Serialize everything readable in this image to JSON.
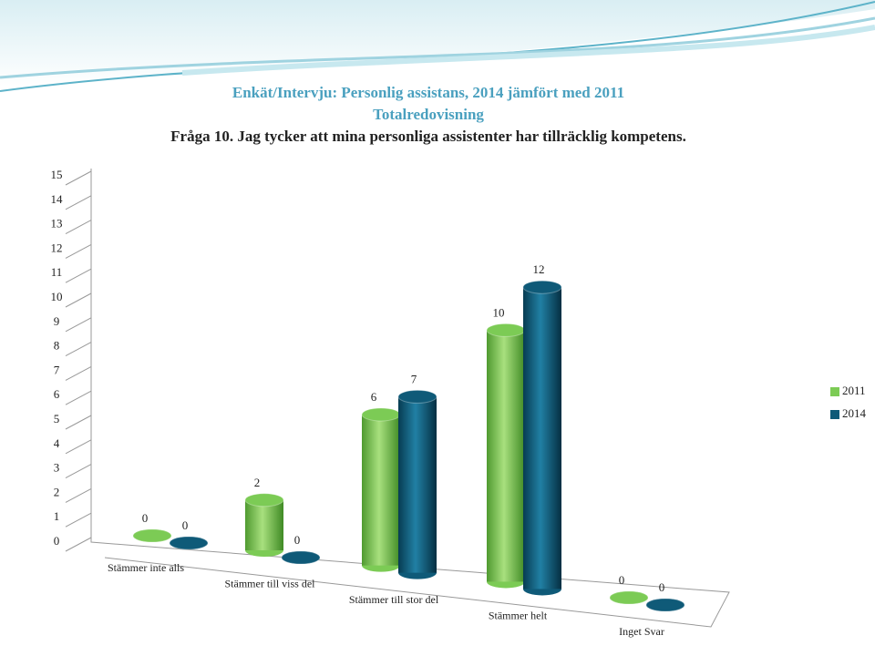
{
  "chart_data": {
    "type": "bar3d",
    "title": "Enkät/Intervju: Personlig assistans, 2014 jämfört med 2011",
    "subtitle": "Totalredovisning",
    "annotations": [
      "Fråga 10. Jag tycker att mina personliga assistenter har tillräcklig kompetens."
    ],
    "categories": [
      "Stämmer inte alls",
      "Stämmer till viss del",
      "Stämmer till stor del",
      "Stämmer helt",
      "Inget Svar"
    ],
    "series": [
      {
        "name": "2011",
        "color": "#7ccb55",
        "values": [
          0,
          2,
          6,
          10,
          0
        ]
      },
      {
        "name": "2014",
        "color": "#0f5a78",
        "values": [
          0,
          0,
          7,
          12,
          0
        ]
      }
    ],
    "ylim": [
      0,
      15
    ],
    "yticks": [
      0,
      1,
      2,
      3,
      4,
      5,
      6,
      7,
      8,
      9,
      10,
      11,
      12,
      13,
      14,
      15
    ],
    "legend": "right"
  }
}
